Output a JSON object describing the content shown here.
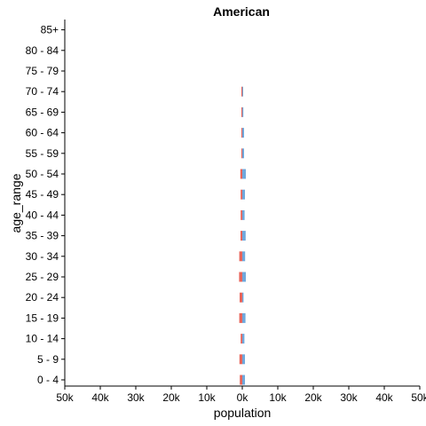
{
  "chart_data": {
    "type": "bar",
    "orientation": "horizontal-population-pyramid",
    "title": "American",
    "xlabel": "population",
    "ylabel": "age_range",
    "categories": [
      "0 - 4",
      "5 - 9",
      "10 - 14",
      "15 - 19",
      "20 - 24",
      "25 - 29",
      "30 - 34",
      "35 - 39",
      "40 - 44",
      "45 - 49",
      "50 - 54",
      "55 - 59",
      "60 - 64",
      "65 - 69",
      "70 - 74",
      "75 - 79",
      "80 - 84",
      "85+"
    ],
    "series": [
      {
        "color": "#e8645a",
        "side": "left",
        "values": [
          700,
          800,
          450,
          850,
          750,
          900,
          850,
          500,
          450,
          450,
          550,
          250,
          200,
          150,
          100,
          0,
          0,
          0
        ]
      },
      {
        "color": "#6fa8dc",
        "side": "right",
        "values": [
          750,
          750,
          600,
          900,
          350,
          1000,
          800,
          950,
          650,
          750,
          1000,
          500,
          500,
          300,
          100,
          0,
          0,
          0
        ]
      }
    ],
    "xlim": [
      -50000,
      50000
    ],
    "xticks": [
      -50000,
      -40000,
      -30000,
      -20000,
      -10000,
      0,
      10000,
      20000,
      30000,
      40000,
      50000
    ],
    "xtick_labels": [
      "50k",
      "40k",
      "30k",
      "20k",
      "10k",
      "0k",
      "10k",
      "20k",
      "30k",
      "40k",
      "50k"
    ],
    "grid": false,
    "legend": "none"
  }
}
